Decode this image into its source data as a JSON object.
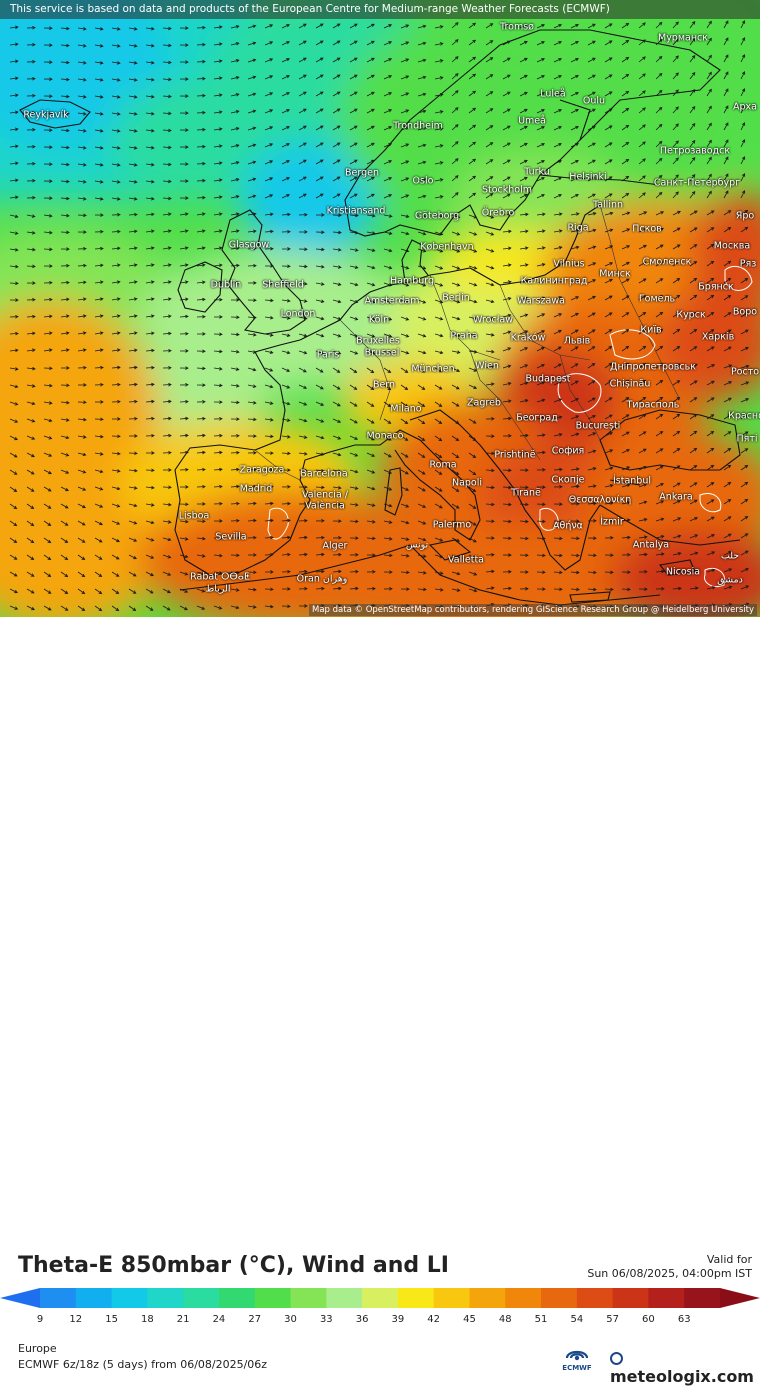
{
  "banner": "This service is based on data and products of the European Centre for Medium-range Weather Forecasts (ECMWF)",
  "attribution": "Map data © OpenStreetMap contributors, rendering GIScience Research Group @ Heidelberg University",
  "title": "Theta-E 850mbar (°C), Wind and LI",
  "valid_label": "Valid for",
  "valid_time": "Sun 06/08/2025, 04:00pm IST",
  "region": "Europe",
  "model_run": "ECMWF 6z/18z (5 days)  from  06/08/2025/06z",
  "brand": "meteologix.com",
  "ecmwf_logo_text": "ECMWF",
  "scale": {
    "ticks": [
      "9",
      "12",
      "15",
      "18",
      "21",
      "24",
      "27",
      "30",
      "33",
      "36",
      "39",
      "42",
      "45",
      "48",
      "51",
      "54",
      "57",
      "60",
      "63"
    ],
    "colors": [
      "#1e8ef0",
      "#11aef0",
      "#13c9e8",
      "#1fd6c8",
      "#2adca0",
      "#32d870",
      "#52de4a",
      "#84e456",
      "#a8ee8c",
      "#d8f060",
      "#f8e818",
      "#f8c810",
      "#f5a50c",
      "#f0860a",
      "#e86810",
      "#dc4c14",
      "#cc3418",
      "#b4201c",
      "#98141c"
    ],
    "left_arrow_color": "#1e6ef0",
    "right_arrow_color": "#8a0e18"
  },
  "cities": [
    {
      "name": "Tromsø"
    },
    {
      "name": "Мурманск"
    },
    {
      "name": "Reykjavík"
    },
    {
      "name": "Luleå"
    },
    {
      "name": "Oulu"
    },
    {
      "name": "Арха"
    },
    {
      "name": "Trondheim"
    },
    {
      "name": "Umeå"
    },
    {
      "name": "Петрозаводск"
    },
    {
      "name": "Bergen"
    },
    {
      "name": "Oslo"
    },
    {
      "name": "Turku"
    },
    {
      "name": "Helsinki"
    },
    {
      "name": "Санкт-Петербург"
    },
    {
      "name": "Stockholm"
    },
    {
      "name": "Kristiansand"
    },
    {
      "name": "Göteborg"
    },
    {
      "name": "Örebro"
    },
    {
      "name": "Tallinn"
    },
    {
      "name": "Яро"
    },
    {
      "name": "Псков"
    },
    {
      "name": "Riga"
    },
    {
      "name": "Glasgow"
    },
    {
      "name": "København"
    },
    {
      "name": "Москва"
    },
    {
      "name": "Vilnius"
    },
    {
      "name": "Смоленск"
    },
    {
      "name": "Ряз"
    },
    {
      "name": "Минск"
    },
    {
      "name": "Калининград"
    },
    {
      "name": "Hamburg"
    },
    {
      "name": "Dublin"
    },
    {
      "name": "Sheffield"
    },
    {
      "name": "Брянск"
    },
    {
      "name": "Berlin"
    },
    {
      "name": "Amsterdam"
    },
    {
      "name": "Warszawa"
    },
    {
      "name": "Гомель"
    },
    {
      "name": "London"
    },
    {
      "name": "Воро"
    },
    {
      "name": "Köln"
    },
    {
      "name": "Wrocław"
    },
    {
      "name": "Курск"
    },
    {
      "name": "Київ"
    },
    {
      "name": "Bruxelles"
    },
    {
      "name": "Brussel"
    },
    {
      "name": "Praha"
    },
    {
      "name": "Kraków"
    },
    {
      "name": "Львів"
    },
    {
      "name": "Харків"
    },
    {
      "name": "Paris"
    },
    {
      "name": "Дніпропетровськ"
    },
    {
      "name": "München"
    },
    {
      "name": "Wien"
    },
    {
      "name": "Росто"
    },
    {
      "name": "Chișinău"
    },
    {
      "name": "Bern"
    },
    {
      "name": "Budapest"
    },
    {
      "name": "Тирасполь"
    },
    {
      "name": "Milano"
    },
    {
      "name": "Zagreb"
    },
    {
      "name": "Београд"
    },
    {
      "name": "Красно"
    },
    {
      "name": "București"
    },
    {
      "name": "Monaco"
    },
    {
      "name": "Пятi"
    },
    {
      "name": "София"
    },
    {
      "name": "Zaragoza"
    },
    {
      "name": "Barcelona"
    },
    {
      "name": "Roma"
    },
    {
      "name": "Prishtinë"
    },
    {
      "name": "Madrid"
    },
    {
      "name": "Napoli"
    },
    {
      "name": "Tiranë"
    },
    {
      "name": "Скопје"
    },
    {
      "name": "İstanbul"
    },
    {
      "name": "Valencia /"
    },
    {
      "name": "València"
    },
    {
      "name": "Θεσσαλονίκη"
    },
    {
      "name": "Ankara"
    },
    {
      "name": "Lisboa"
    },
    {
      "name": "Αθήνα"
    },
    {
      "name": "İzmir"
    },
    {
      "name": "Palermo"
    },
    {
      "name": "Sevilla"
    },
    {
      "name": "تونس"
    },
    {
      "name": "Alger"
    },
    {
      "name": "Antalya"
    },
    {
      "name": "Valletta"
    },
    {
      "name": "حلب"
    },
    {
      "name": "Rabat ⵔⴱⴰⵟ"
    },
    {
      "name": "Oran وهران"
    },
    {
      "name": "Nicosia"
    },
    {
      "name": "الرباط"
    },
    {
      "name": "دمشق"
    }
  ]
}
